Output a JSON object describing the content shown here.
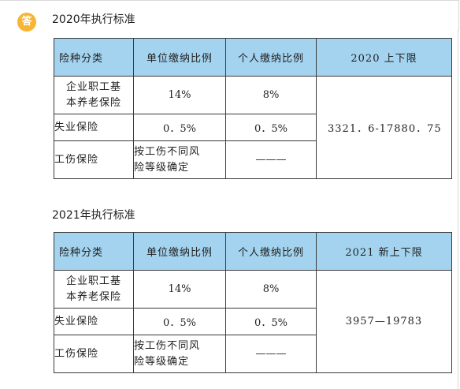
{
  "badge": "答",
  "sections": [
    {
      "title": "2020年执行标准",
      "headers": [
        "险种分类",
        "单位缴纳比例",
        "个人缴纳比例",
        "2020 上下限"
      ],
      "rows": [
        {
          "type_line1": "企业职工基",
          "type_line2": "本养老保险",
          "employer": "14%",
          "personal": "8%"
        },
        {
          "type": "失业保险",
          "employer": "0．5%",
          "personal": "0．5%"
        },
        {
          "type": "工伤保险",
          "employer_line1": "按工伤不同风",
          "employer_line2": "险等级确定",
          "personal": "———"
        }
      ],
      "limit": "3321．6-17880．75"
    },
    {
      "title": "2021年执行标准",
      "headers": [
        "险种分类",
        "单位缴纳比例",
        "个人缴纳比例",
        "2021 新上下限"
      ],
      "rows": [
        {
          "type_line1": "企业职工基",
          "type_line2": "本养老保险",
          "employer": "14%",
          "personal": "8%"
        },
        {
          "type": "失业保险",
          "employer": "0．5%",
          "personal": "0．5%"
        },
        {
          "type": "工伤保险",
          "employer_line1": "按工伤不同风",
          "employer_line2": "险等级确定",
          "personal": "———"
        }
      ],
      "limit": "3957—19783"
    }
  ]
}
